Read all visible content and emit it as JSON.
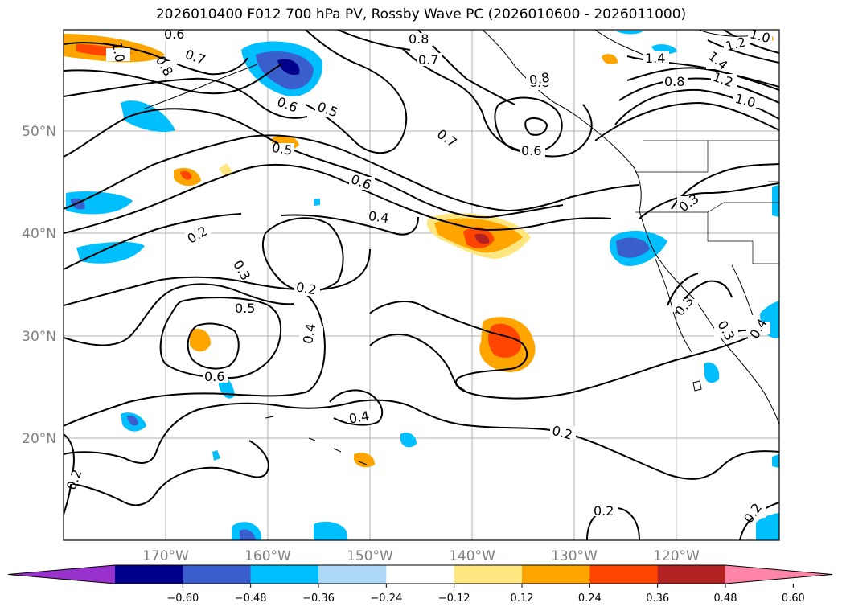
{
  "title": "2026010400 F012 700 hPa PV, Rossby Wave PC (2026010600 - 2026011000)",
  "latitude_labels": [
    "50°N",
    "40°N",
    "30°N",
    "20°N"
  ],
  "longitude_labels": [
    "170°W",
    "160°W",
    "150°W",
    "140°W",
    "130°W",
    "120°W"
  ],
  "contour_labels": [
    "0.6",
    "0.7",
    "0.8",
    "1.0",
    "0.8",
    "0.7",
    "0.8",
    "1.2",
    "1.0",
    "1.4",
    "1.4",
    "1.2",
    "1.0",
    "0.8",
    "0.7",
    "0.6",
    "0.5",
    "0.6",
    "0.5",
    "0.7",
    "0.6",
    "0.6",
    "0.4",
    "0.3",
    "0.2",
    "0.3",
    "0.2",
    "0.5",
    "0.4",
    "0.6",
    "0.4",
    "0.2",
    "0.3",
    "0.3",
    "0.4",
    "0.2",
    "0.2",
    "0.2",
    "0.6"
  ],
  "colorbar": {
    "tick_labels": [
      "−0.60",
      "−0.48",
      "−0.36",
      "−0.24",
      "−0.12",
      "0.12",
      "0.24",
      "0.36",
      "0.48",
      "0.60"
    ],
    "colors": [
      "#9932cc",
      "#00008b",
      "#3a5fcd",
      "#00bfff",
      "#add8f5",
      "#ffffff",
      "#ffe680",
      "#ffa500",
      "#ff4500",
      "#b22222",
      "#ff85a8"
    ]
  },
  "shading_colors": {
    "neg_light": "#add8f5",
    "neg_mid": "#00bfff",
    "neg_strong": "#3a5fcd",
    "neg_max": "#00008b",
    "pos_light": "#ffe680",
    "pos_mid": "#ffa500",
    "pos_strong": "#ff4500"
  }
}
